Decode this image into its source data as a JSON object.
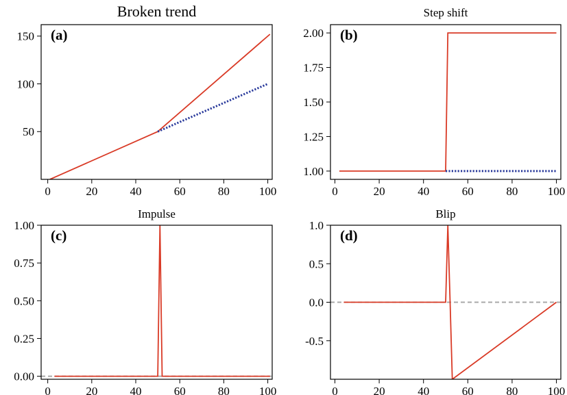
{
  "chart_data": [
    {
      "type": "line",
      "letter": "(a)",
      "title": "Broken trend",
      "xlim": [
        -3,
        102
      ],
      "ylim": [
        0,
        162
      ],
      "xticks": [
        0,
        20,
        40,
        60,
        80,
        100
      ],
      "yticks": [
        50,
        100,
        150
      ],
      "series": [
        {
          "style": "solid",
          "color": "#d93a26",
          "x": [
            1,
            50,
            101
          ],
          "y": [
            0,
            50,
            152
          ]
        },
        {
          "style": "dotted",
          "color": "#2b3b9c",
          "x": [
            50,
            100
          ],
          "y": [
            50,
            100
          ]
        }
      ]
    },
    {
      "type": "line",
      "letter": "(b)",
      "title": "Step shift",
      "xlim": [
        -2,
        102
      ],
      "ylim": [
        0.94,
        2.06
      ],
      "xticks": [
        0,
        20,
        40,
        60,
        80,
        100
      ],
      "yticks": [
        "1.00",
        "1.25",
        "1.50",
        "1.75",
        "2.00"
      ],
      "series": [
        {
          "style": "solid",
          "color": "#d93a26",
          "x": [
            2,
            50,
            51,
            100
          ],
          "y": [
            1,
            1,
            2,
            2
          ]
        },
        {
          "style": "dotted",
          "color": "#2b3b9c",
          "x": [
            50,
            100
          ],
          "y": [
            1,
            1
          ]
        }
      ]
    },
    {
      "type": "line",
      "letter": "(c)",
      "title": "Impulse",
      "xlim": [
        -3,
        102
      ],
      "ylim": [
        -0.02,
        1.0
      ],
      "xticks": [
        0,
        20,
        40,
        60,
        80,
        100
      ],
      "yticks": [
        "0.00",
        "0.25",
        "0.50",
        "0.75",
        "1.00"
      ],
      "series": [
        {
          "style": "dashed",
          "color": "#a8a8a8",
          "x": [
            -3,
            102
          ],
          "y": [
            0,
            0
          ]
        },
        {
          "style": "solid",
          "color": "#d93a26",
          "x": [
            3,
            50,
            51,
            52,
            101
          ],
          "y": [
            0,
            0,
            1,
            0,
            0
          ]
        }
      ]
    },
    {
      "type": "line",
      "letter": "(d)",
      "title": "Blip",
      "xlim": [
        -2,
        102
      ],
      "ylim": [
        -1.0,
        1.0
      ],
      "xticks": [
        0,
        20,
        40,
        60,
        80,
        100
      ],
      "yticks": [
        "-0.5",
        "0.0",
        "0.5",
        "1.0"
      ],
      "series": [
        {
          "style": "dashed",
          "color": "#a8a8a8",
          "x": [
            -2,
            102
          ],
          "y": [
            0,
            0
          ]
        },
        {
          "style": "solid",
          "color": "#d93a26",
          "x": [
            4,
            50,
            51,
            52,
            53,
            100
          ],
          "y": [
            0,
            0,
            1,
            0,
            -1,
            0
          ]
        }
      ]
    }
  ]
}
